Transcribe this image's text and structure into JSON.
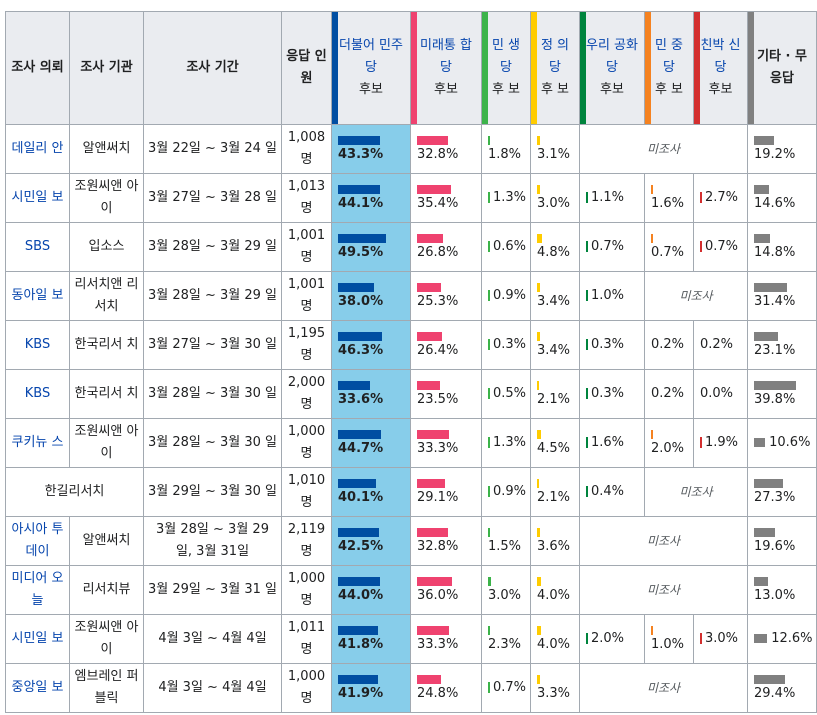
{
  "headers": {
    "sponsor": "조사 의뢰",
    "agency": "조사 기관",
    "period": "조사 기간",
    "n": "응답 인원",
    "dp": {
      "l1": "더불어 민주당",
      "l2": "후보"
    },
    "up": {
      "l1": "미래통 합당",
      "l2": "후보"
    },
    "ms": {
      "l1": "민 생 당",
      "l2": "후 보"
    },
    "jp": {
      "l1": "정 의 당",
      "l2": "후 보"
    },
    "wr": {
      "l1": "우리 공화 당",
      "l2": "후보"
    },
    "mj": {
      "l1": "민 중 당",
      "l2": "후 보"
    },
    "cb": {
      "l1": "친박 신당",
      "l2": "후보"
    },
    "other": "기타 · 무응답"
  },
  "colors": {
    "dp": "#004ea2",
    "up": "#ef426f",
    "ms": "#3cb34a",
    "jp": "#ffcc00",
    "wr": "#00843d",
    "mj": "#f58220",
    "cb": "#d32f2f",
    "other": "#808080",
    "dp_bg": "#87cdea"
  },
  "not_surveyed": "미조사",
  "rows": [
    {
      "sponsor": "데일리 안",
      "agency": "알앤써치",
      "period": "3월 22일 ~ 3월 24 일",
      "n": "1,008 명",
      "dp": "43.3%",
      "up": "32.8%",
      "ms": "1.8%",
      "jp": "3.1%",
      "wr": null,
      "mj": null,
      "cb": null,
      "other": "19.2%"
    },
    {
      "sponsor": "시민일 보",
      "agency": "조원씨앤 아이",
      "period": "3월 27일 ~ 3월 28 일",
      "n": "1,013 명",
      "dp": "44.1%",
      "up": "35.4%",
      "ms": "1.3%",
      "jp": "3.0%",
      "wr": "1.1%",
      "mj": "1.6%",
      "cb": "2.7%",
      "other": "14.6%"
    },
    {
      "sponsor": "SBS",
      "agency": "입소스",
      "period": "3월 28일 ~ 3월 29 일",
      "n": "1,001 명",
      "dp": "49.5%",
      "up": "26.8%",
      "ms": "0.6%",
      "jp": "4.8%",
      "wr": "0.7%",
      "mj": "0.7%",
      "cb": "0.7%",
      "other": "14.8%"
    },
    {
      "sponsor": "동아일 보",
      "agency": "리서치앤 리서치",
      "period": "3월 28일 ~ 3월 29 일",
      "n": "1,001 명",
      "dp": "38.0%",
      "up": "25.3%",
      "ms": "0.9%",
      "jp": "3.4%",
      "wr": "1.0%",
      "mj": null,
      "cb": null,
      "other": "31.4%"
    },
    {
      "sponsor": "KBS",
      "agency": "한국리서 치",
      "period": "3월 27일 ~ 3월 30 일",
      "n": "1,195 명",
      "dp": "46.3%",
      "up": "26.4%",
      "ms": "0.3%",
      "jp": "3.4%",
      "wr": "0.3%",
      "mj": "0.2%",
      "cb": "0.2%",
      "other": "23.1%"
    },
    {
      "sponsor": "KBS",
      "agency": "한국리서 치",
      "period": "3월 28일 ~ 3월 30 일",
      "n": "2,000 명",
      "dp": "33.6%",
      "up": "23.5%",
      "ms": "0.5%",
      "jp": "2.1%",
      "wr": "0.3%",
      "mj": "0.2%",
      "cb": "0.0%",
      "other": "39.8%"
    },
    {
      "sponsor": "쿠키뉴 스",
      "agency": "조원씨앤 아이",
      "period": "3월 28일 ~ 3월 30 일",
      "n": "1,000 명",
      "dp": "44.7%",
      "up": "33.3%",
      "ms": "1.3%",
      "jp": "4.5%",
      "wr": "1.6%",
      "mj": "2.0%",
      "cb": "1.9%",
      "other": "10.6%"
    },
    {
      "sponsor": "한길리서치",
      "agency": null,
      "period": "3월 29일 ~ 3월 30 일",
      "n": "1,010 명",
      "dp": "40.1%",
      "up": "29.1%",
      "ms": "0.9%",
      "jp": "2.1%",
      "wr": "0.4%",
      "mj": null,
      "cb": null,
      "other": "27.3%"
    },
    {
      "sponsor": "아시아 투데이",
      "agency": "알앤써치",
      "period": "3월 28일 ~ 3월 29 일, 3월 31일",
      "n": "2,119 명",
      "dp": "42.5%",
      "up": "32.8%",
      "ms": "1.5%",
      "jp": "3.6%",
      "wr": null,
      "mj": null,
      "cb": null,
      "other": "19.6%"
    },
    {
      "sponsor": "미디어 오늘",
      "agency": "리서치뷰",
      "period": "3월 29일 ~ 3월 31 일",
      "n": "1,000 명",
      "dp": "44.0%",
      "up": "36.0%",
      "ms": "3.0%",
      "jp": "4.0%",
      "wr": null,
      "mj": null,
      "cb": null,
      "other": "13.0%"
    },
    {
      "sponsor": "시민일 보",
      "agency": "조원씨앤 아이",
      "period": "4월 3일 ~ 4월 4일",
      "n": "1,011 명",
      "dp": "41.8%",
      "up": "33.3%",
      "ms": "2.3%",
      "jp": "4.0%",
      "wr": "2.0%",
      "mj": "1.0%",
      "cb": "3.0%",
      "other": "12.6%"
    },
    {
      "sponsor": "중앙일 보",
      "agency": "엠브레인 퍼블릭",
      "period": "4월 3일 ~ 4월 4일",
      "n": "1,000 명",
      "dp": "41.9%",
      "up": "24.8%",
      "ms": "0.7%",
      "jp": "3.3%",
      "wr": null,
      "mj": null,
      "cb": null,
      "other": "29.4%"
    }
  ]
}
